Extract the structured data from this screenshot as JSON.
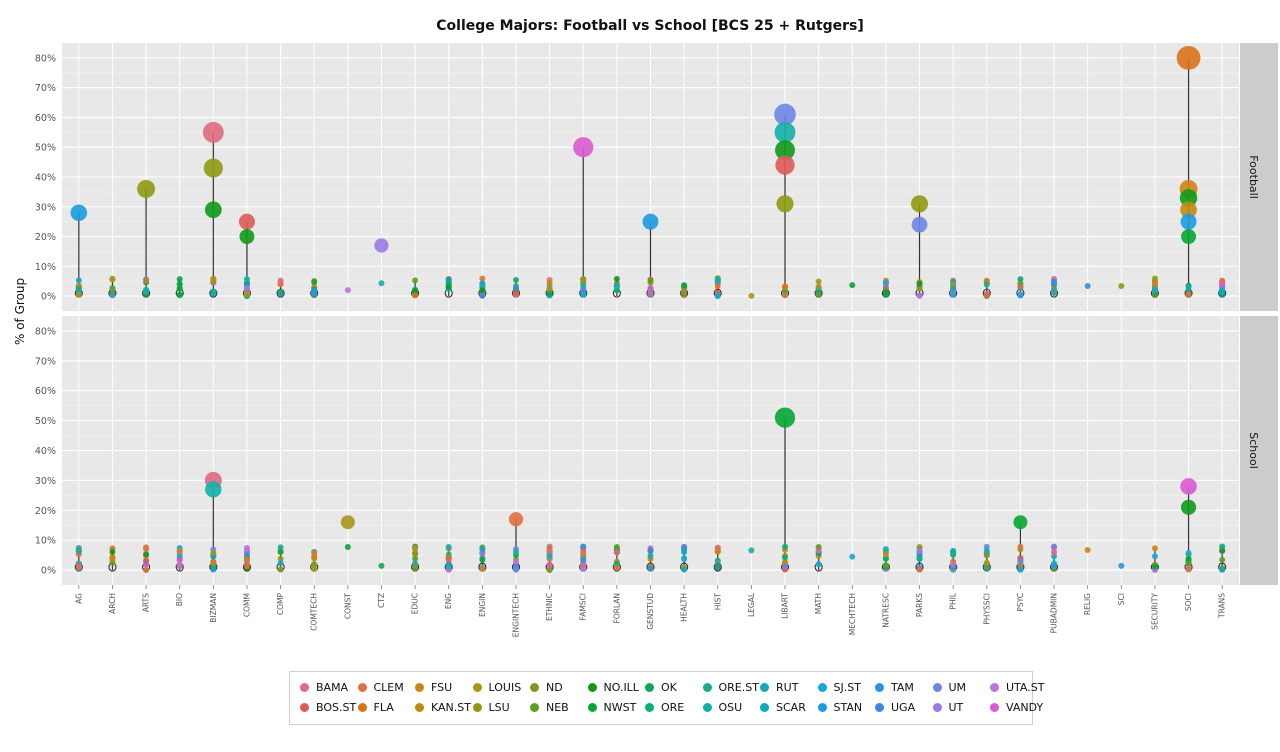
{
  "chart_data": {
    "type": "scatter",
    "title": "College Majors: Football vs School [BCS 25 + Rutgers]",
    "ylabel": "% of Group",
    "ylim": [
      -5,
      85
    ],
    "yticks": [
      "0%",
      "10%",
      "20%",
      "30%",
      "40%",
      "50%",
      "60%",
      "70%",
      "80%"
    ],
    "ytick_values": [
      0,
      10,
      20,
      30,
      40,
      50,
      60,
      70,
      80
    ],
    "categories": [
      "AG",
      "ARCH",
      "ARTS",
      "BIO",
      "BIZMAN",
      "COMM",
      "COMP",
      "COMTECH",
      "CONST",
      "CTZ",
      "EDUC",
      "ENG",
      "ENGIN",
      "ENGINTECH",
      "ETHNIC",
      "FAMSCI",
      "FORLAN",
      "GENSTUD",
      "HEALTH",
      "HIST",
      "LEGAL",
      "LIBART",
      "MATH",
      "MECHTECH",
      "NATRESC",
      "PARKS",
      "PHIL",
      "PHYSSCI",
      "PSYC",
      "PUBADMIN",
      "RELIG",
      "SCI",
      "SECURITY",
      "SOCI",
      "TRANS"
    ],
    "facets": [
      "Football",
      "School"
    ],
    "grid": true,
    "legend_position": "bottom",
    "legend": [
      {
        "name": "BAMA",
        "color": "#e06a80"
      },
      {
        "name": "BOS.ST",
        "color": "#dd5b58"
      },
      {
        "name": "CLEM",
        "color": "#e07040"
      },
      {
        "name": "FLA",
        "color": "#d9731a"
      },
      {
        "name": "FSU",
        "color": "#cf8416"
      },
      {
        "name": "KAN.ST",
        "color": "#c28b0f"
      },
      {
        "name": "LOUIS",
        "color": "#a8961a"
      },
      {
        "name": "LSU",
        "color": "#8f9a12"
      },
      {
        "name": "ND",
        "color": "#7a9a23"
      },
      {
        "name": "NEB",
        "color": "#56a21e"
      },
      {
        "name": "NO.ILL",
        "color": "#109a1a"
      },
      {
        "name": "NWST",
        "color": "#07a633"
      },
      {
        "name": "OK",
        "color": "#0aa852"
      },
      {
        "name": "ORE",
        "color": "#0aad74"
      },
      {
        "name": "ORE.ST",
        "color": "#16ad8f"
      },
      {
        "name": "OSU",
        "color": "#14b0a8"
      },
      {
        "name": "RUT",
        "color": "#14aab6"
      },
      {
        "name": "SCAR",
        "color": "#10a7c6"
      },
      {
        "name": "SJ.ST",
        "color": "#1aa6d8"
      },
      {
        "name": "STAN",
        "color": "#1c9ce0"
      },
      {
        "name": "TAM",
        "color": "#2a93e0"
      },
      {
        "name": "UGA",
        "color": "#3a88e0"
      },
      {
        "name": "UM",
        "color": "#6b86e4"
      },
      {
        "name": "UT",
        "color": "#9b7ae6"
      },
      {
        "name": "UTA.ST",
        "color": "#c070e0"
      },
      {
        "name": "VANDY",
        "color": "#dc5ad0"
      }
    ],
    "panels": [
      {
        "facet": "Football",
        "highlights": [
          {
            "major": "AG",
            "team": "STAN",
            "value": 28
          },
          {
            "major": "ARTS",
            "team": "LSU",
            "value": 36
          },
          {
            "major": "BIZMAN",
            "team": "BAMA",
            "value": 55
          },
          {
            "major": "BIZMAN",
            "team": "LSU",
            "value": 43
          },
          {
            "major": "BIZMAN",
            "team": "NO.ILL",
            "value": 29
          },
          {
            "major": "COMM",
            "team": "BOS.ST",
            "value": 25
          },
          {
            "major": "COMM",
            "team": "NO.ILL",
            "value": 20
          },
          {
            "major": "CTZ",
            "team": "UT",
            "value": 17
          },
          {
            "major": "FAMSCI",
            "team": "VANDY",
            "value": 50
          },
          {
            "major": "GENSTUD",
            "team": "STAN",
            "value": 25
          },
          {
            "major": "LIBART",
            "team": "UM",
            "value": 61
          },
          {
            "major": "LIBART",
            "team": "OSU",
            "value": 55
          },
          {
            "major": "LIBART",
            "team": "NO.ILL",
            "value": 49
          },
          {
            "major": "LIBART",
            "team": "BOS.ST",
            "value": 44
          },
          {
            "major": "LIBART",
            "team": "LSU",
            "value": 31
          },
          {
            "major": "PARKS",
            "team": "LSU",
            "value": 31
          },
          {
            "major": "PARKS",
            "team": "UM",
            "value": 24
          },
          {
            "major": "SOCI",
            "team": "FLA",
            "value": 80
          },
          {
            "major": "SOCI",
            "team": "FSU",
            "value": 36
          },
          {
            "major": "SOCI",
            "team": "NO.ILL",
            "value": 33
          },
          {
            "major": "SOCI",
            "team": "KAN.ST",
            "value": 29
          },
          {
            "major": "SOCI",
            "team": "STAN",
            "value": 25
          },
          {
            "major": "SOCI",
            "team": "NWST",
            "value": 20
          }
        ]
      },
      {
        "facet": "School",
        "highlights": [
          {
            "major": "BIZMAN",
            "team": "BAMA",
            "value": 30
          },
          {
            "major": "BIZMAN",
            "team": "OSU",
            "value": 27
          },
          {
            "major": "CONST",
            "team": "LOUIS",
            "value": 16
          },
          {
            "major": "ENGINTECH",
            "team": "CLEM",
            "value": 17
          },
          {
            "major": "LIBART",
            "team": "NWST",
            "value": 51
          },
          {
            "major": "PSYC",
            "team": "NWST",
            "value": 16
          },
          {
            "major": "SOCI",
            "team": "VANDY",
            "value": 28
          },
          {
            "major": "SOCI",
            "team": "NO.ILL",
            "value": 21
          }
        ]
      }
    ]
  }
}
